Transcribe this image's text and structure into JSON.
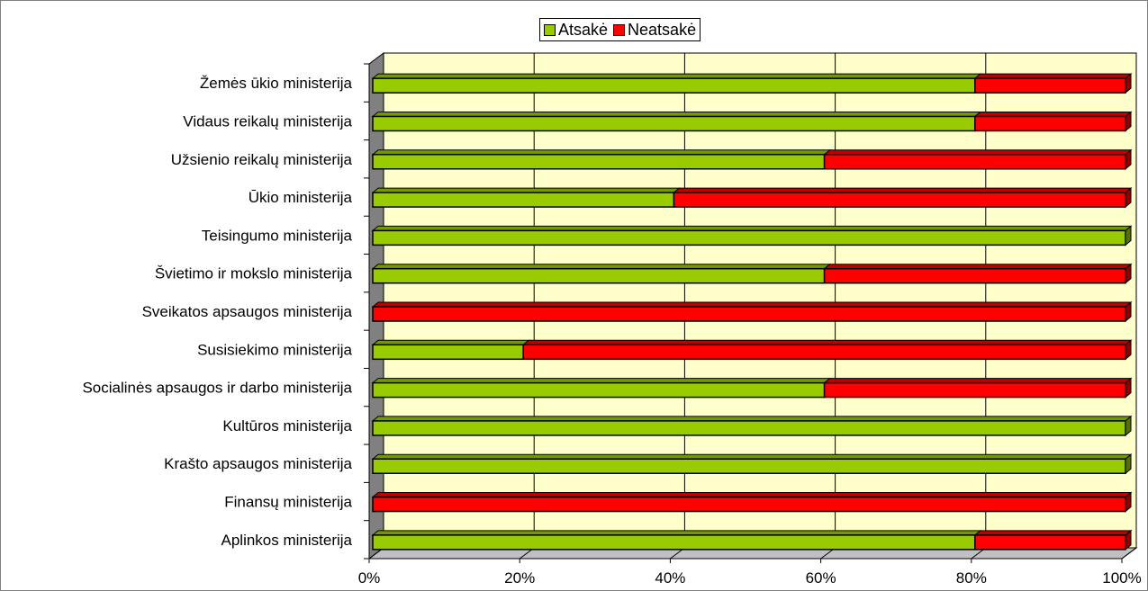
{
  "chart_data": {
    "type": "bar",
    "orientation": "horizontal",
    "stacked": "percent",
    "categories": [
      "Žemės ūkio ministerija",
      "Vidaus reikalų ministerija",
      "Užsienio reikalų ministerija",
      "Ūkio ministerija",
      "Teisingumo ministerija",
      "Švietimo ir mokslo ministerija",
      "Sveikatos apsaugos ministerija",
      "Susisiekimo ministerija",
      "Socialinės apsaugos ir darbo ministerija",
      "Kultūros ministerija",
      "Krašto apsaugos ministerija",
      "Finansų ministerija",
      "Aplinkos ministerija"
    ],
    "series": [
      {
        "name": "Atsakė",
        "color": "#99cc00",
        "values": [
          80,
          80,
          60,
          40,
          100,
          60,
          0,
          20,
          60,
          100,
          100,
          0,
          80
        ]
      },
      {
        "name": "Neatsakė",
        "color": "#ff0000",
        "values": [
          20,
          20,
          40,
          60,
          0,
          40,
          100,
          80,
          40,
          0,
          0,
          100,
          20
        ]
      }
    ],
    "xlim": [
      0,
      100
    ],
    "xticks": [
      "0%",
      "20%",
      "40%",
      "60%",
      "80%",
      "100%"
    ],
    "grid": true,
    "legend_position": "top-center",
    "title": "",
    "xlabel": "",
    "ylabel": "",
    "plot_background": "#ffffcc",
    "wall_color": "#808080"
  }
}
